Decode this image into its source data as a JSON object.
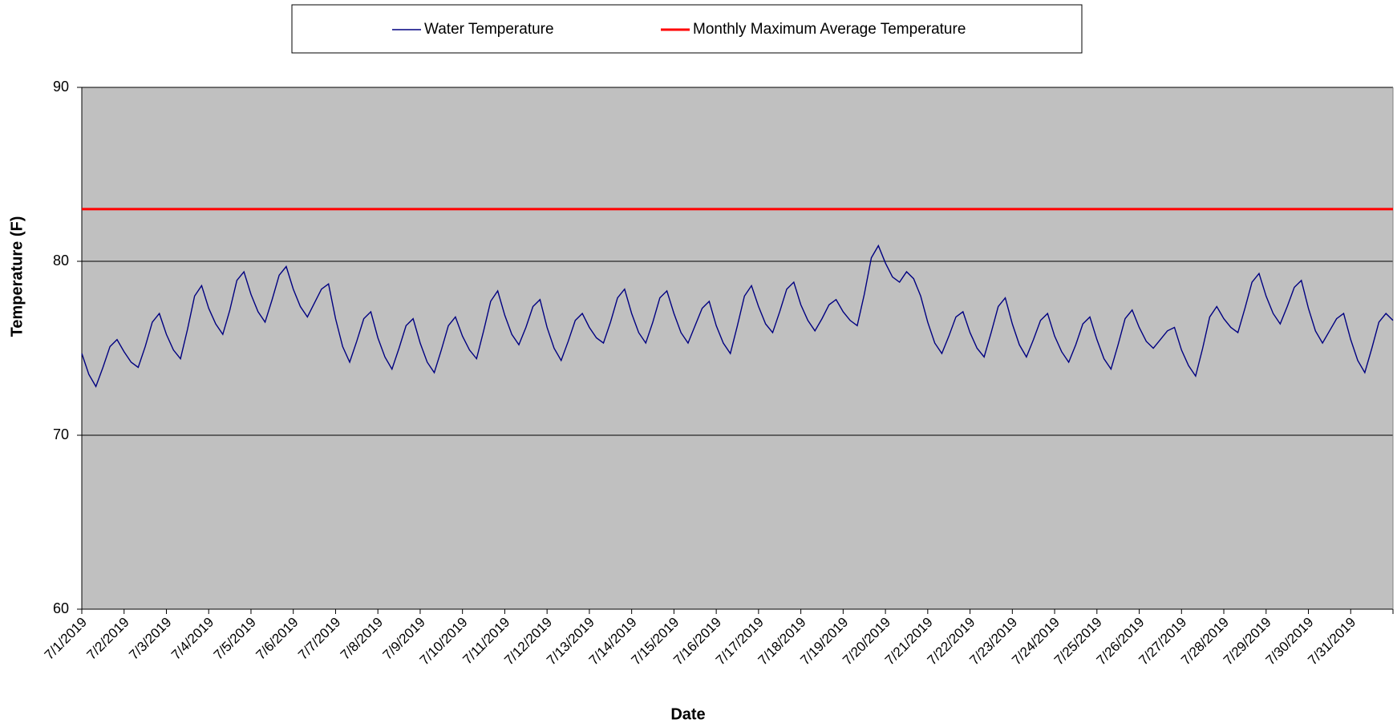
{
  "chart_data": {
    "type": "line",
    "xlabel": "Date",
    "ylabel": "Temperature (F)",
    "xticks": [
      "7/1/2019",
      "7/2/2019",
      "7/3/2019",
      "7/4/2019",
      "7/5/2019",
      "7/6/2019",
      "7/7/2019",
      "7/8/2019",
      "7/9/2019",
      "7/10/2019",
      "7/11/2019",
      "7/12/2019",
      "7/13/2019",
      "7/14/2019",
      "7/15/2019",
      "7/16/2019",
      "7/17/2019",
      "7/18/2019",
      "7/19/2019",
      "7/20/2019",
      "7/21/2019",
      "7/22/2019",
      "7/23/2019",
      "7/24/2019",
      "7/25/2019",
      "7/26/2019",
      "7/27/2019",
      "7/28/2019",
      "7/29/2019",
      "7/30/2019",
      "7/31/2019"
    ],
    "ylim": [
      60,
      90
    ],
    "yticks": [
      60,
      70,
      80,
      90
    ],
    "grid": true,
    "background": "#c0c0c0",
    "series": [
      {
        "name": "Water Temperature",
        "color": "#000080",
        "values": [
          74.7,
          73.5,
          72.8,
          73.9,
          75.1,
          75.5,
          74.8,
          74.2,
          73.9,
          75.1,
          76.5,
          77.0,
          75.8,
          74.9,
          74.4,
          76.1,
          78.0,
          78.6,
          77.3,
          76.4,
          75.8,
          77.2,
          78.9,
          79.4,
          78.1,
          77.1,
          76.5,
          77.8,
          79.2,
          79.7,
          78.4,
          77.4,
          76.8,
          77.6,
          78.4,
          78.7,
          76.7,
          75.1,
          74.2,
          75.4,
          76.7,
          77.1,
          75.6,
          74.5,
          73.8,
          75.0,
          76.3,
          76.7,
          75.3,
          74.2,
          73.6,
          74.9,
          76.3,
          76.8,
          75.7,
          74.9,
          74.4,
          76.0,
          77.7,
          78.3,
          76.9,
          75.8,
          75.2,
          76.2,
          77.4,
          77.8,
          76.2,
          75.0,
          74.3,
          75.4,
          76.6,
          77.0,
          76.2,
          75.6,
          75.3,
          76.5,
          77.9,
          78.4,
          77.0,
          75.9,
          75.3,
          76.5,
          77.9,
          78.3,
          77.0,
          75.9,
          75.3,
          76.3,
          77.3,
          77.7,
          76.3,
          75.3,
          74.7,
          76.3,
          78.0,
          78.6,
          77.4,
          76.4,
          75.9,
          77.1,
          78.4,
          78.8,
          77.5,
          76.6,
          76.0,
          76.7,
          77.5,
          77.8,
          77.1,
          76.6,
          76.3,
          78.1,
          80.2,
          80.9,
          79.9,
          79.1,
          78.8,
          79.4,
          79.0,
          78.0,
          76.5,
          75.3,
          74.7,
          75.7,
          76.8,
          77.1,
          75.9,
          75.0,
          74.5,
          75.9,
          77.4,
          77.9,
          76.4,
          75.2,
          74.5,
          75.5,
          76.6,
          77.0,
          75.7,
          74.8,
          74.2,
          75.2,
          76.4,
          76.8,
          75.5,
          74.4,
          73.8,
          75.2,
          76.7,
          77.2,
          76.2,
          75.4,
          75.0,
          75.5,
          76.0,
          76.2,
          74.9,
          74.0,
          73.4,
          75.0,
          76.8,
          77.4,
          76.7,
          76.2,
          75.9,
          77.3,
          78.8,
          79.3,
          78.0,
          77.0,
          76.4,
          77.4,
          78.5,
          78.9,
          77.3,
          76.0,
          75.3,
          76.0,
          76.7,
          77.0,
          75.5,
          74.3,
          73.6,
          75.0,
          76.5,
          77.0,
          76.6
        ]
      }
    ],
    "reference_lines": [
      {
        "name": "Monthly Maximum Average Temperature",
        "color": "#ff0000",
        "value": 83
      }
    ]
  }
}
